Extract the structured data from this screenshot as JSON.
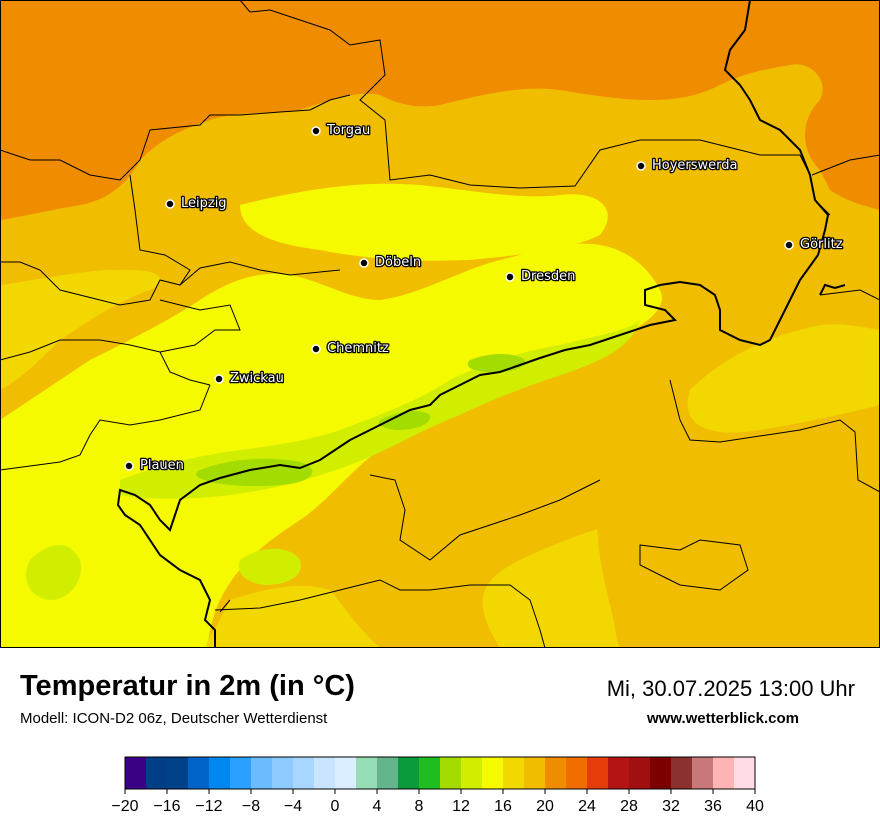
{
  "map": {
    "cities": [
      {
        "name": "Torgau"
      },
      {
        "name": "Hoyerswerda"
      },
      {
        "name": "Leipzig"
      },
      {
        "name": "Görlitz"
      },
      {
        "name": "Döbeln"
      },
      {
        "name": "Dresden"
      },
      {
        "name": "Chemnitz"
      },
      {
        "name": "Zwickau"
      },
      {
        "name": "Plauen"
      }
    ]
  },
  "header": {
    "title": "Temperatur in 2m (in °C)",
    "subtitle": "Modell: ICON-D2 06z, Deutscher Wetterdienst",
    "datetime": "Mi, 30.07.2025 13:00 Uhr",
    "website": "www.wetterblick.com"
  },
  "scale": {
    "ticks": [
      "−20",
      "−16",
      "−12",
      "−8",
      "−4",
      "0",
      "4",
      "8",
      "12",
      "16",
      "20",
      "24",
      "28",
      "32",
      "36",
      "40"
    ],
    "colors": [
      "#3a0085",
      "#003f88",
      "#00428a",
      "#0064c8",
      "#0088f0",
      "#2aa0ff",
      "#6bbcff",
      "#8ccaff",
      "#a9d6ff",
      "#c9e4ff",
      "#daeeff",
      "#96dcb4",
      "#64b48c",
      "#0a9a3c",
      "#1fbd1f",
      "#a2dc00",
      "#d2ee00",
      "#f5fa00",
      "#f2d800",
      "#f0bd00",
      "#f08c00",
      "#f06e00",
      "#e63b0a",
      "#b41414",
      "#a01010",
      "#7d0000",
      "#8c3030",
      "#c87878",
      "#ffb4b4",
      "#ffdce6"
    ]
  }
}
